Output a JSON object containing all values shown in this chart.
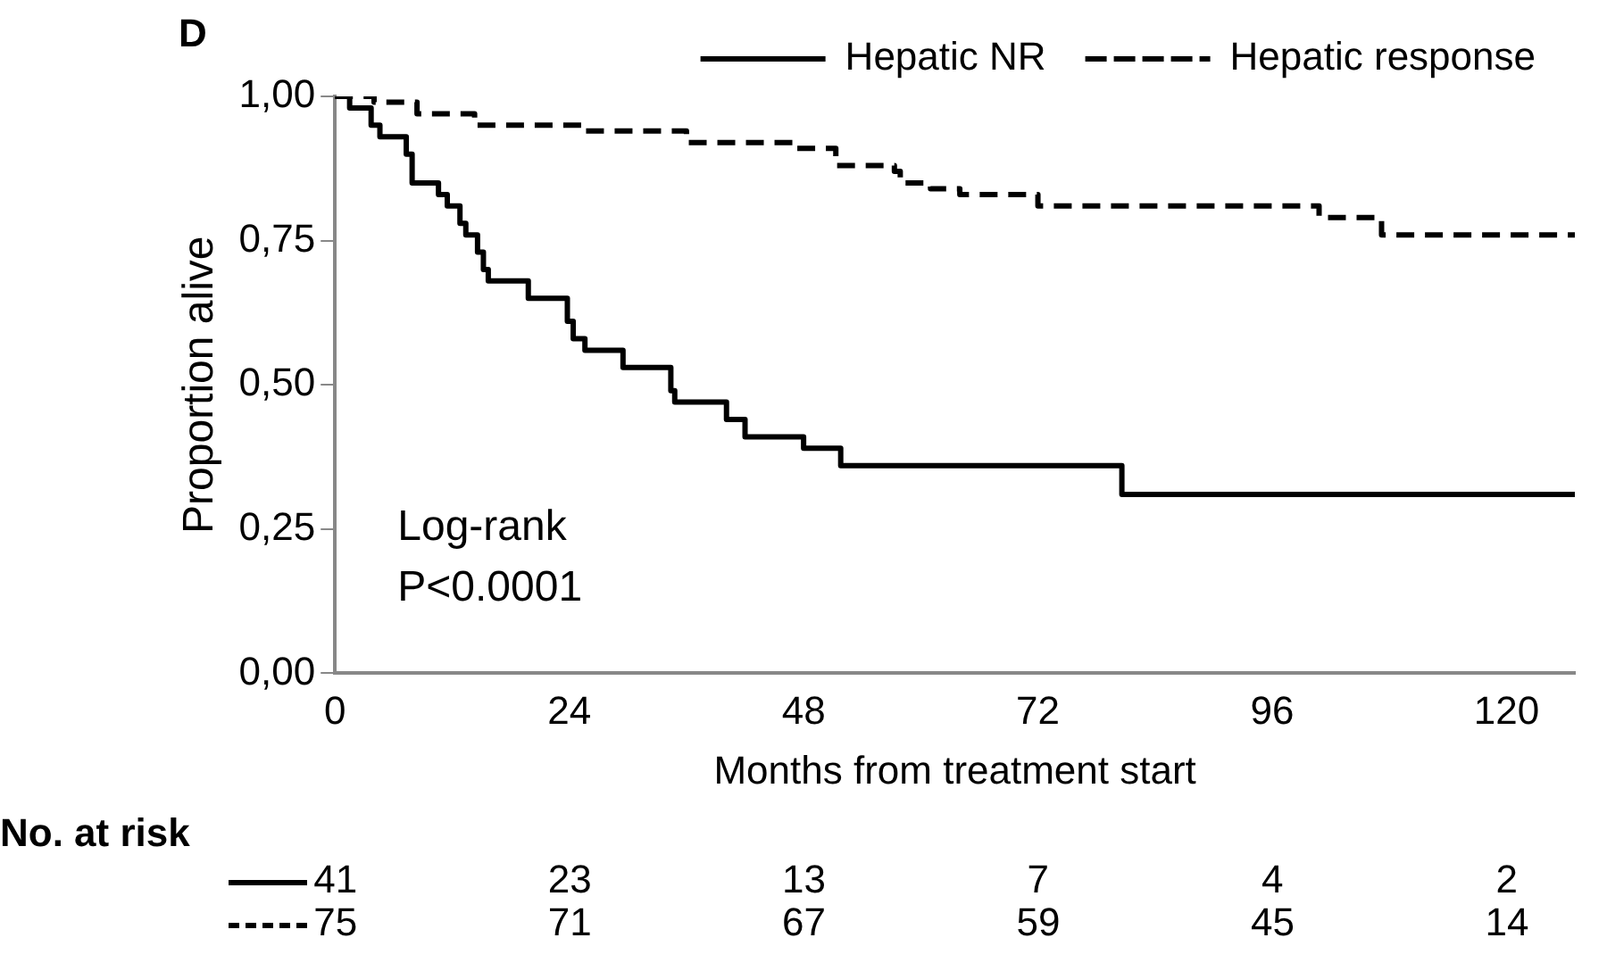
{
  "chart_data": {
    "type": "step",
    "title": "D",
    "xlabel": "Months from treatment start",
    "ylabel": "Proportion alive",
    "annotations": [
      "Log-rank\nP<0.0001",
      "No. at risk",
      "41 23 13 7 4 2",
      "75 71 67 59 45 14"
    ],
    "xlim": [
      0,
      127
    ],
    "xticks": [
      0,
      24,
      48,
      72,
      96,
      120
    ],
    "ylim": [
      0,
      1
    ],
    "yticks": [
      {
        "value": 0,
        "label": "0,00"
      },
      {
        "value": 0.25,
        "label": "0,25"
      },
      {
        "value": 0.5,
        "label": "0,50"
      },
      {
        "value": 0.75,
        "label": "0,75"
      },
      {
        "value": 1,
        "label": "1,00"
      }
    ],
    "grid": false,
    "legend": "top",
    "marker": "none",
    "series": [
      {
        "name": "Hepatic NR",
        "color": "#000000",
        "line_style": "solid",
        "x": [
          0,
          1.5,
          3.7,
          4.6,
          7.3,
          7.9,
          10.6,
          11.5,
          12.8,
          13.4,
          14.6,
          15.2,
          15.7,
          19.8,
          23.8,
          24.4,
          25.6,
          29.5,
          34.4,
          34.8,
          40.1,
          42,
          48,
          51.8,
          80.6,
          127
        ],
        "values": [
          1,
          0.98,
          0.95,
          0.93,
          0.9,
          0.85,
          0.83,
          0.81,
          0.78,
          0.76,
          0.73,
          0.7,
          0.68,
          0.65,
          0.61,
          0.58,
          0.56,
          0.53,
          0.49,
          0.47,
          0.44,
          0.41,
          0.39,
          0.36,
          0.31,
          0.31
        ]
      },
      {
        "name": "Hepatic response",
        "color": "#000000",
        "line_style": "dashed",
        "x": [
          0,
          4,
          8.4,
          14.3,
          25.6,
          36,
          47.3,
          51.3,
          57.3,
          57.9,
          61,
          64,
          72,
          100.8,
          107.2,
          127
        ],
        "values": [
          1,
          0.99,
          0.97,
          0.95,
          0.94,
          0.92,
          0.91,
          0.88,
          0.87,
          0.85,
          0.84,
          0.83,
          0.81,
          0.79,
          0.76,
          0.76
        ]
      }
    ]
  }
}
